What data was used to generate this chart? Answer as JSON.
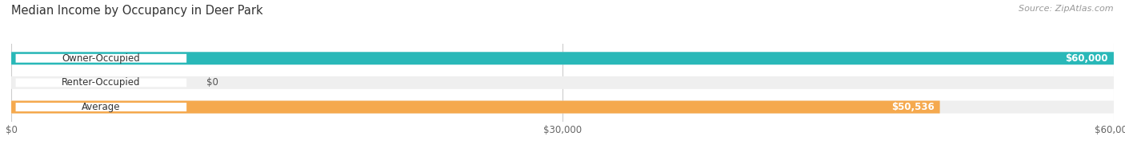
{
  "title": "Median Income by Occupancy in Deer Park",
  "source": "Source: ZipAtlas.com",
  "categories": [
    "Owner-Occupied",
    "Renter-Occupied",
    "Average"
  ],
  "values": [
    60000,
    0,
    50536
  ],
  "bar_colors": [
    "#29b8b8",
    "#c4a8d4",
    "#f5a94e"
  ],
  "bar_bg_color": "#efefef",
  "label_values": [
    "$60,000",
    "$0",
    "$50,536"
  ],
  "xmax": 60000,
  "xticks": [
    0,
    30000,
    60000
  ],
  "xtick_labels": [
    "$0",
    "$30,000",
    "$60,000"
  ],
  "title_fontsize": 10.5,
  "source_fontsize": 8,
  "bar_label_fontsize": 8.5,
  "category_fontsize": 8.5,
  "tick_fontsize": 8.5,
  "background_color": "#ffffff",
  "bar_height": 0.52
}
